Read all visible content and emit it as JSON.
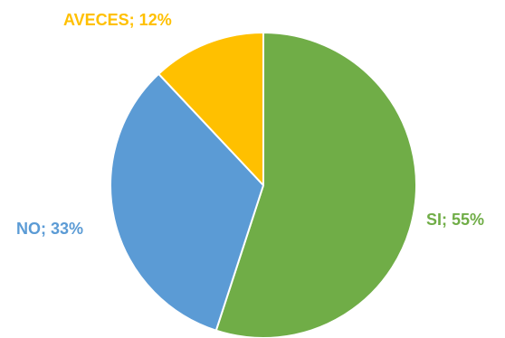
{
  "chart_data": {
    "type": "pie",
    "slices": [
      {
        "label": "SI",
        "value": 55,
        "color": "#70AD47",
        "display": "SI; 55%"
      },
      {
        "label": "NO",
        "value": 33,
        "color": "#5B9BD5",
        "display": "NO; 33%"
      },
      {
        "label": "AVECES",
        "value": 12,
        "color": "#FFC000",
        "display": "AVECES; 12%"
      }
    ],
    "start": "12 o'clock",
    "direction": "clockwise",
    "legend": "none"
  }
}
